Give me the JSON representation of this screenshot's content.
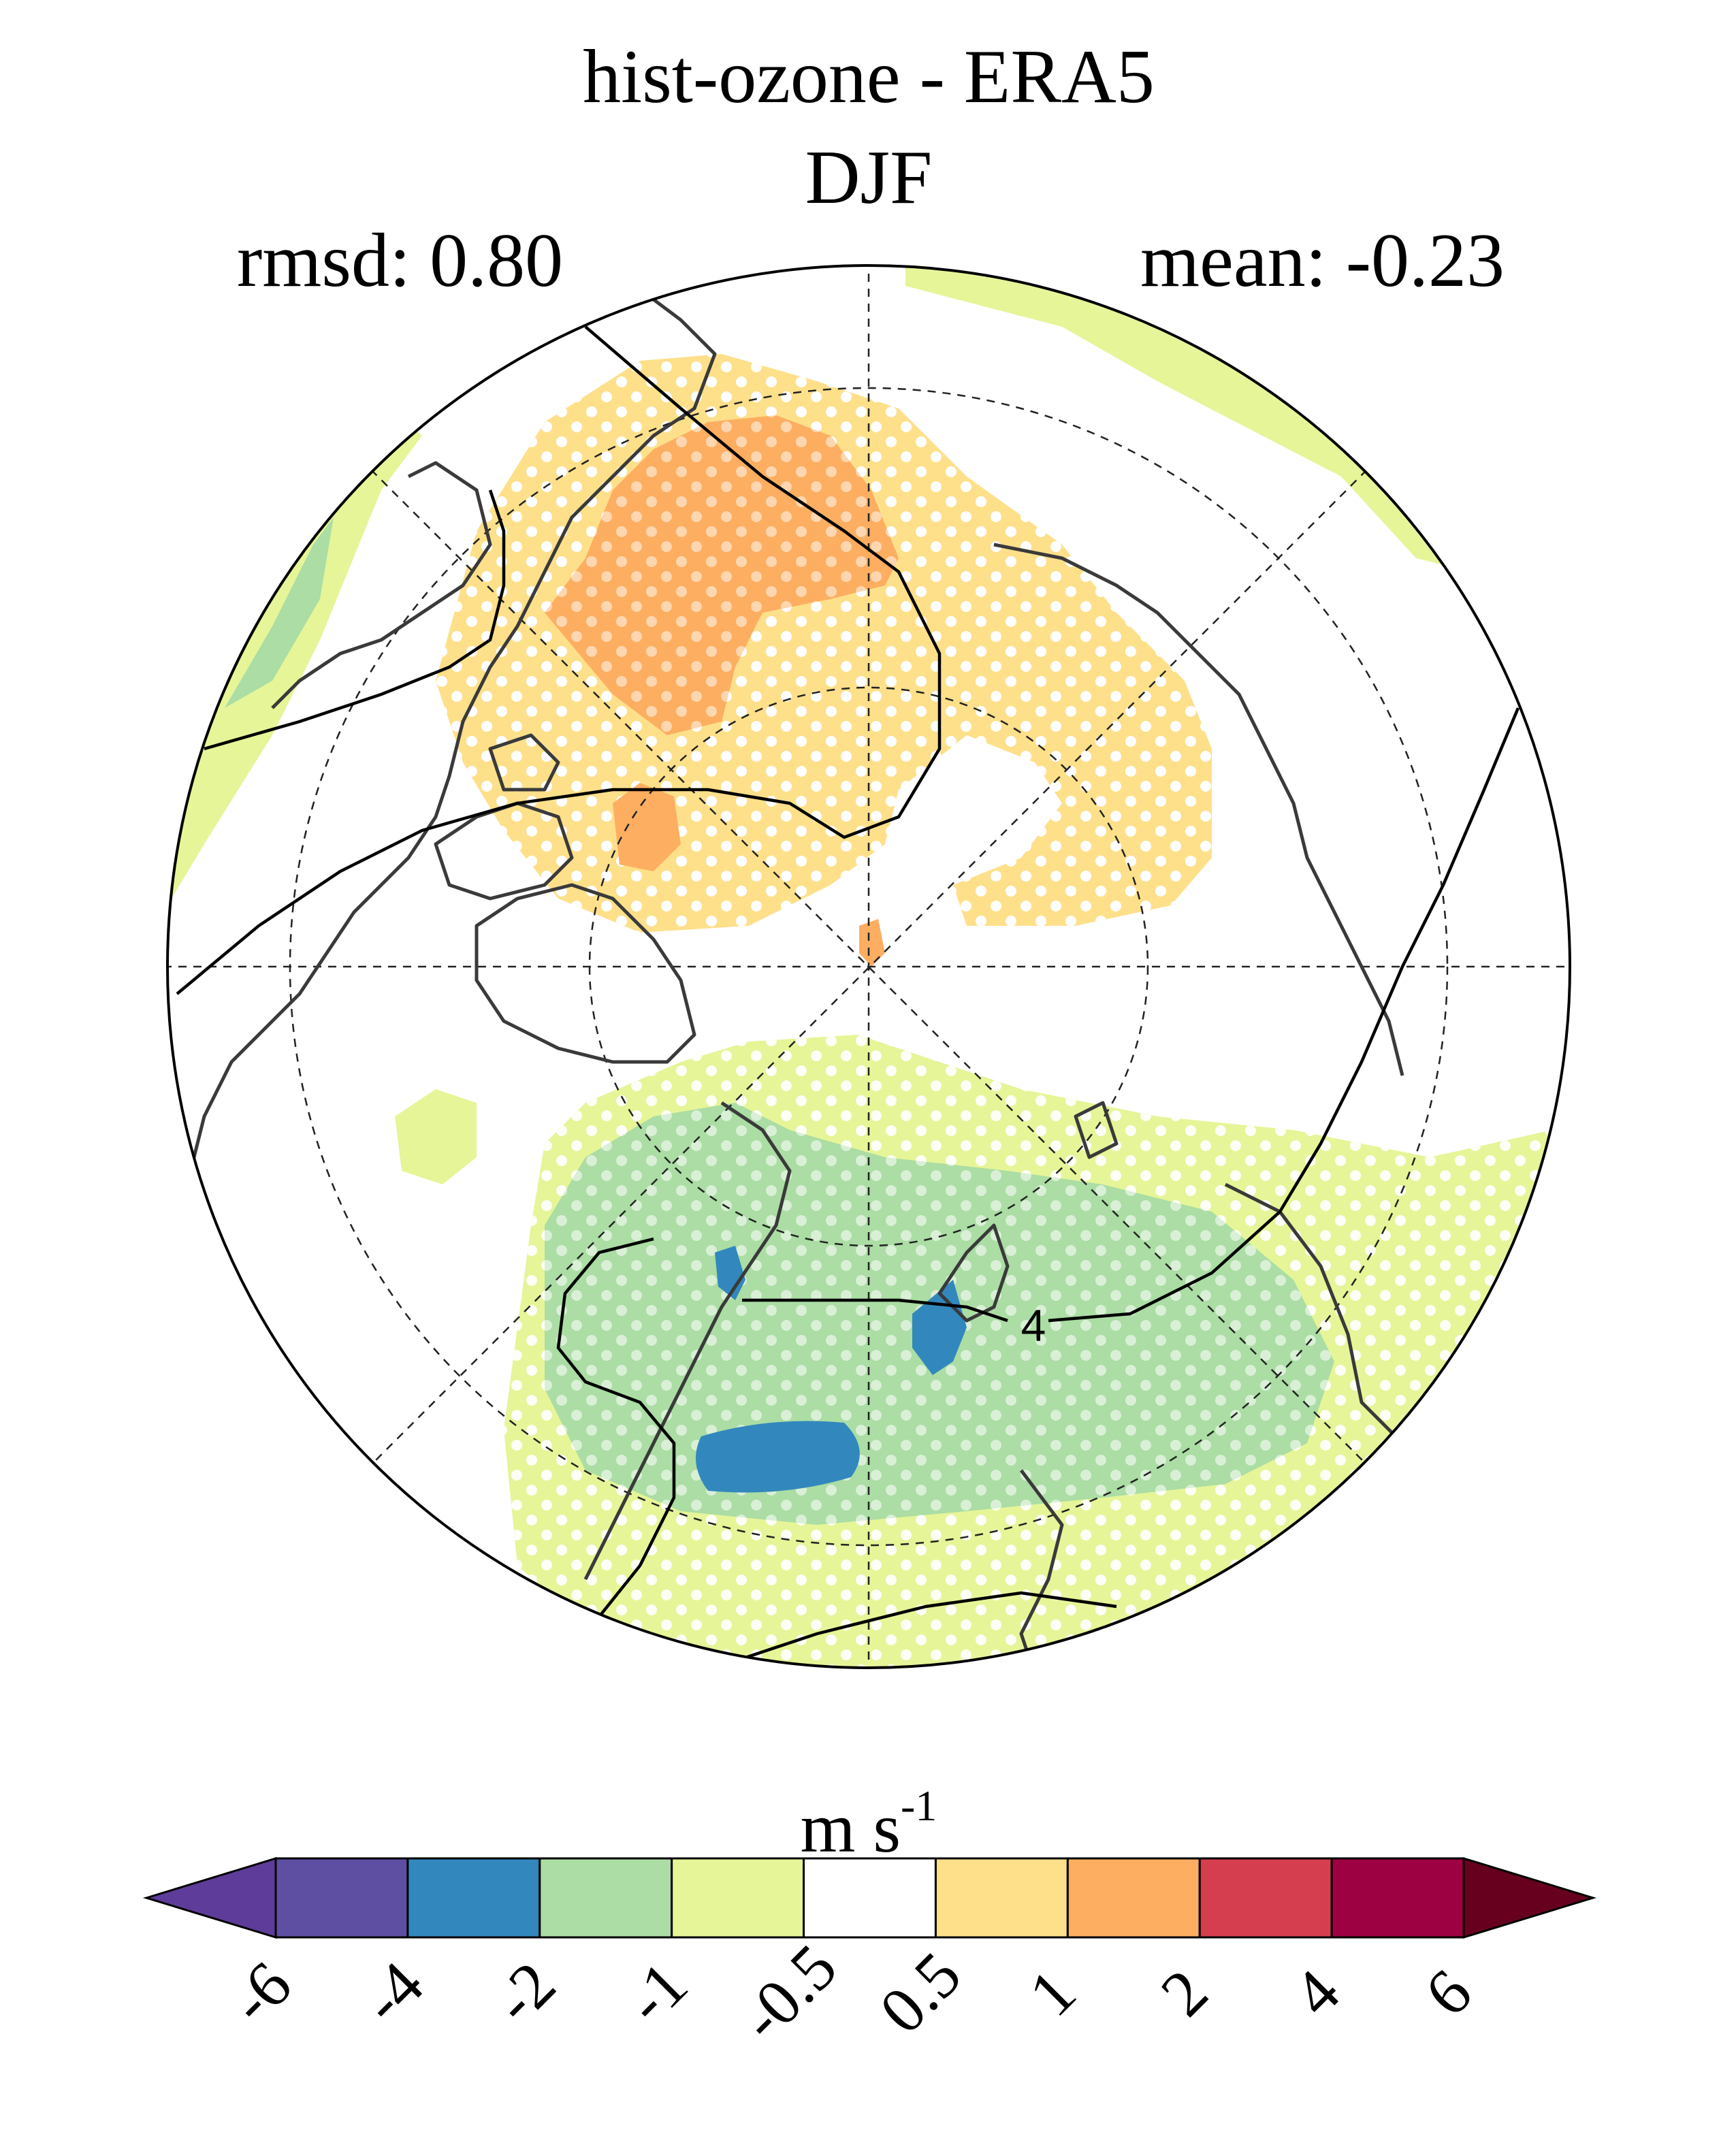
{
  "title": "hist-ozone - ERA5",
  "season": "DJF",
  "stats": {
    "rmsd_label": "rmsd: 0.80",
    "mean_label": "mean: -0.23"
  },
  "contour_label": "4",
  "colorbar": {
    "units_base": "m s",
    "units_exponent": "-1",
    "ticks": [
      "-6",
      "-4",
      "-2",
      "-1",
      "-0.5",
      "0.5",
      "1",
      "2",
      "4",
      "6"
    ],
    "colors": [
      "#5e3c99",
      "#5e4fa2",
      "#3288bd",
      "#abdda4",
      "#e6f598",
      "#ffffff",
      "#fee08b",
      "#fdae61",
      "#d53e4f",
      "#9e0142",
      "#67001f"
    ]
  },
  "colors": {
    "orange": "#fdae61",
    "light_orange": "#fee08b",
    "green": "#abdda4",
    "light_green": "#e6f598",
    "blue": "#3288bd",
    "coast": "#3a3a3a"
  }
}
